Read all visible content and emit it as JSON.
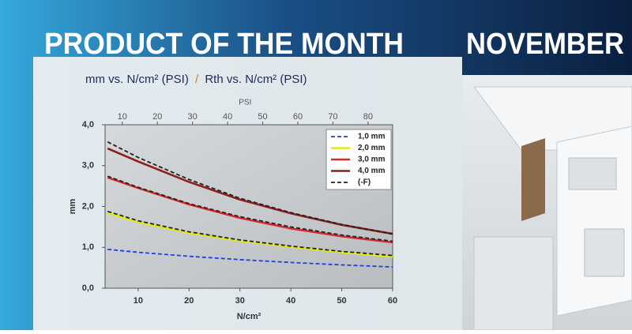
{
  "banner": {
    "heading": "PRODUCT OF THE MONTH",
    "month": "NOVEMBER"
  },
  "chart_data": {
    "type": "line",
    "title_parts": [
      "mm vs. N/cm² (PSI)",
      "/",
      "Rth vs. N/cm² (PSI)"
    ],
    "x_label": "N/cm²",
    "x2_label": "PSI",
    "y_label": "mm",
    "x": [
      4,
      10,
      20,
      30,
      40,
      50,
      60
    ],
    "xlim": [
      3.5,
      60
    ],
    "xticks": [
      10,
      20,
      30,
      40,
      50,
      60
    ],
    "x2lim": [
      5.1,
      87
    ],
    "x2ticks": [
      10,
      20,
      30,
      40,
      50,
      60,
      70,
      80
    ],
    "ylim": [
      0,
      4
    ],
    "yticks": [
      {
        "value": 0,
        "label": "0,0"
      },
      {
        "value": 1,
        "label": "1,0"
      },
      {
        "value": 2,
        "label": "2,0"
      },
      {
        "value": 3,
        "label": "3,0"
      },
      {
        "value": 4,
        "label": "4,0"
      }
    ],
    "grid": false,
    "legend": "upper-right",
    "series": [
      {
        "name": "1,0 mm",
        "color": "#1f3fd6",
        "dash": true,
        "values": [
          0.95,
          0.88,
          0.78,
          0.7,
          0.63,
          0.57,
          0.52
        ]
      },
      {
        "name": "2,0 mm",
        "color": "#e2e81a",
        "dash": false,
        "values": [
          1.84,
          1.62,
          1.35,
          1.16,
          1.01,
          0.88,
          0.77
        ]
      },
      {
        "name": "3,0 mm",
        "color": "#d42a2a",
        "dash": false,
        "values": [
          2.71,
          2.45,
          2.05,
          1.72,
          1.46,
          1.27,
          1.12
        ]
      },
      {
        "name": "4,0 mm",
        "color": "#8e1f1f",
        "dash": false,
        "values": [
          3.42,
          3.1,
          2.6,
          2.17,
          1.83,
          1.55,
          1.33
        ]
      },
      {
        "name": "(-F)",
        "color": "#222222",
        "dash": true,
        "x": [
          4,
          10,
          20,
          30,
          40,
          50,
          60,
          null,
          4,
          10,
          20,
          30,
          40,
          50,
          60,
          null,
          4,
          10,
          20,
          30,
          40,
          50,
          60
        ],
        "values": [
          3.58,
          3.2,
          2.66,
          2.2,
          1.85,
          1.56,
          1.33,
          null,
          2.74,
          2.47,
          2.07,
          1.75,
          1.5,
          1.3,
          1.15,
          null,
          1.88,
          1.65,
          1.38,
          1.18,
          1.03,
          0.9,
          0.8
        ]
      }
    ]
  }
}
